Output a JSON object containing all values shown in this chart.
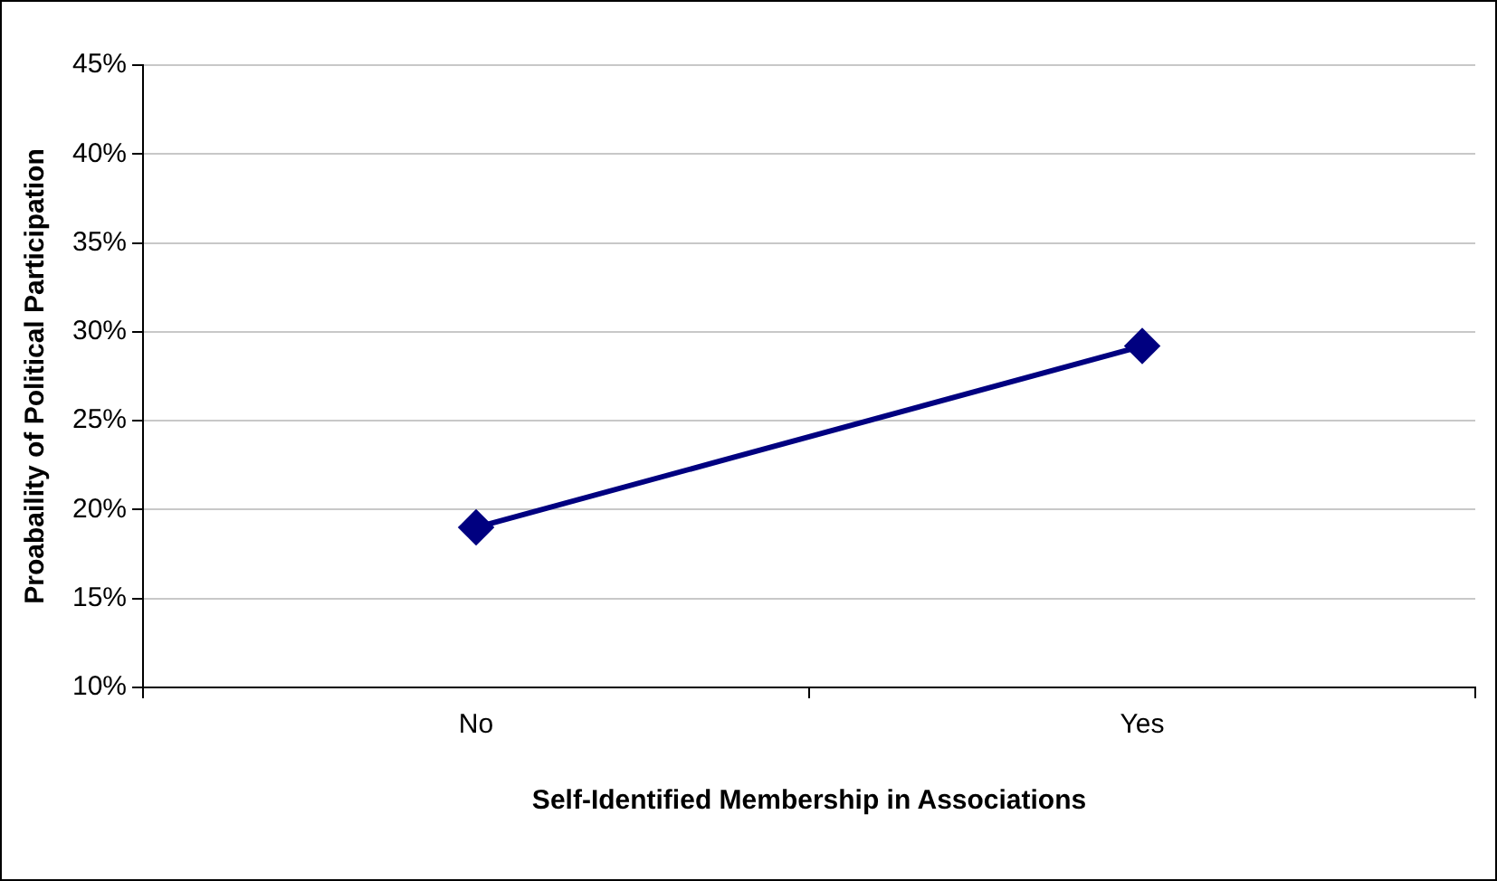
{
  "chart_data": {
    "type": "line",
    "xlabel": "Self-Identified Membership in Associations",
    "ylabel": "Proabaility of Political Participation",
    "categories": [
      "No",
      "Yes"
    ],
    "series": [
      {
        "color": "#000080",
        "values": [
          19.0,
          29.2
        ]
      }
    ],
    "ylim": [
      10,
      45
    ],
    "yticks": [
      {
        "value": 10,
        "label": "10%"
      },
      {
        "value": 15,
        "label": "15%"
      },
      {
        "value": 20,
        "label": "20%"
      },
      {
        "value": 25,
        "label": "25%"
      },
      {
        "value": 30,
        "label": "30%"
      },
      {
        "value": 35,
        "label": "35%"
      },
      {
        "value": 40,
        "label": "40%"
      },
      {
        "value": 45,
        "label": "45%"
      }
    ],
    "grid": "y",
    "legend": false,
    "marker": "diamond",
    "line_style": "solid"
  }
}
